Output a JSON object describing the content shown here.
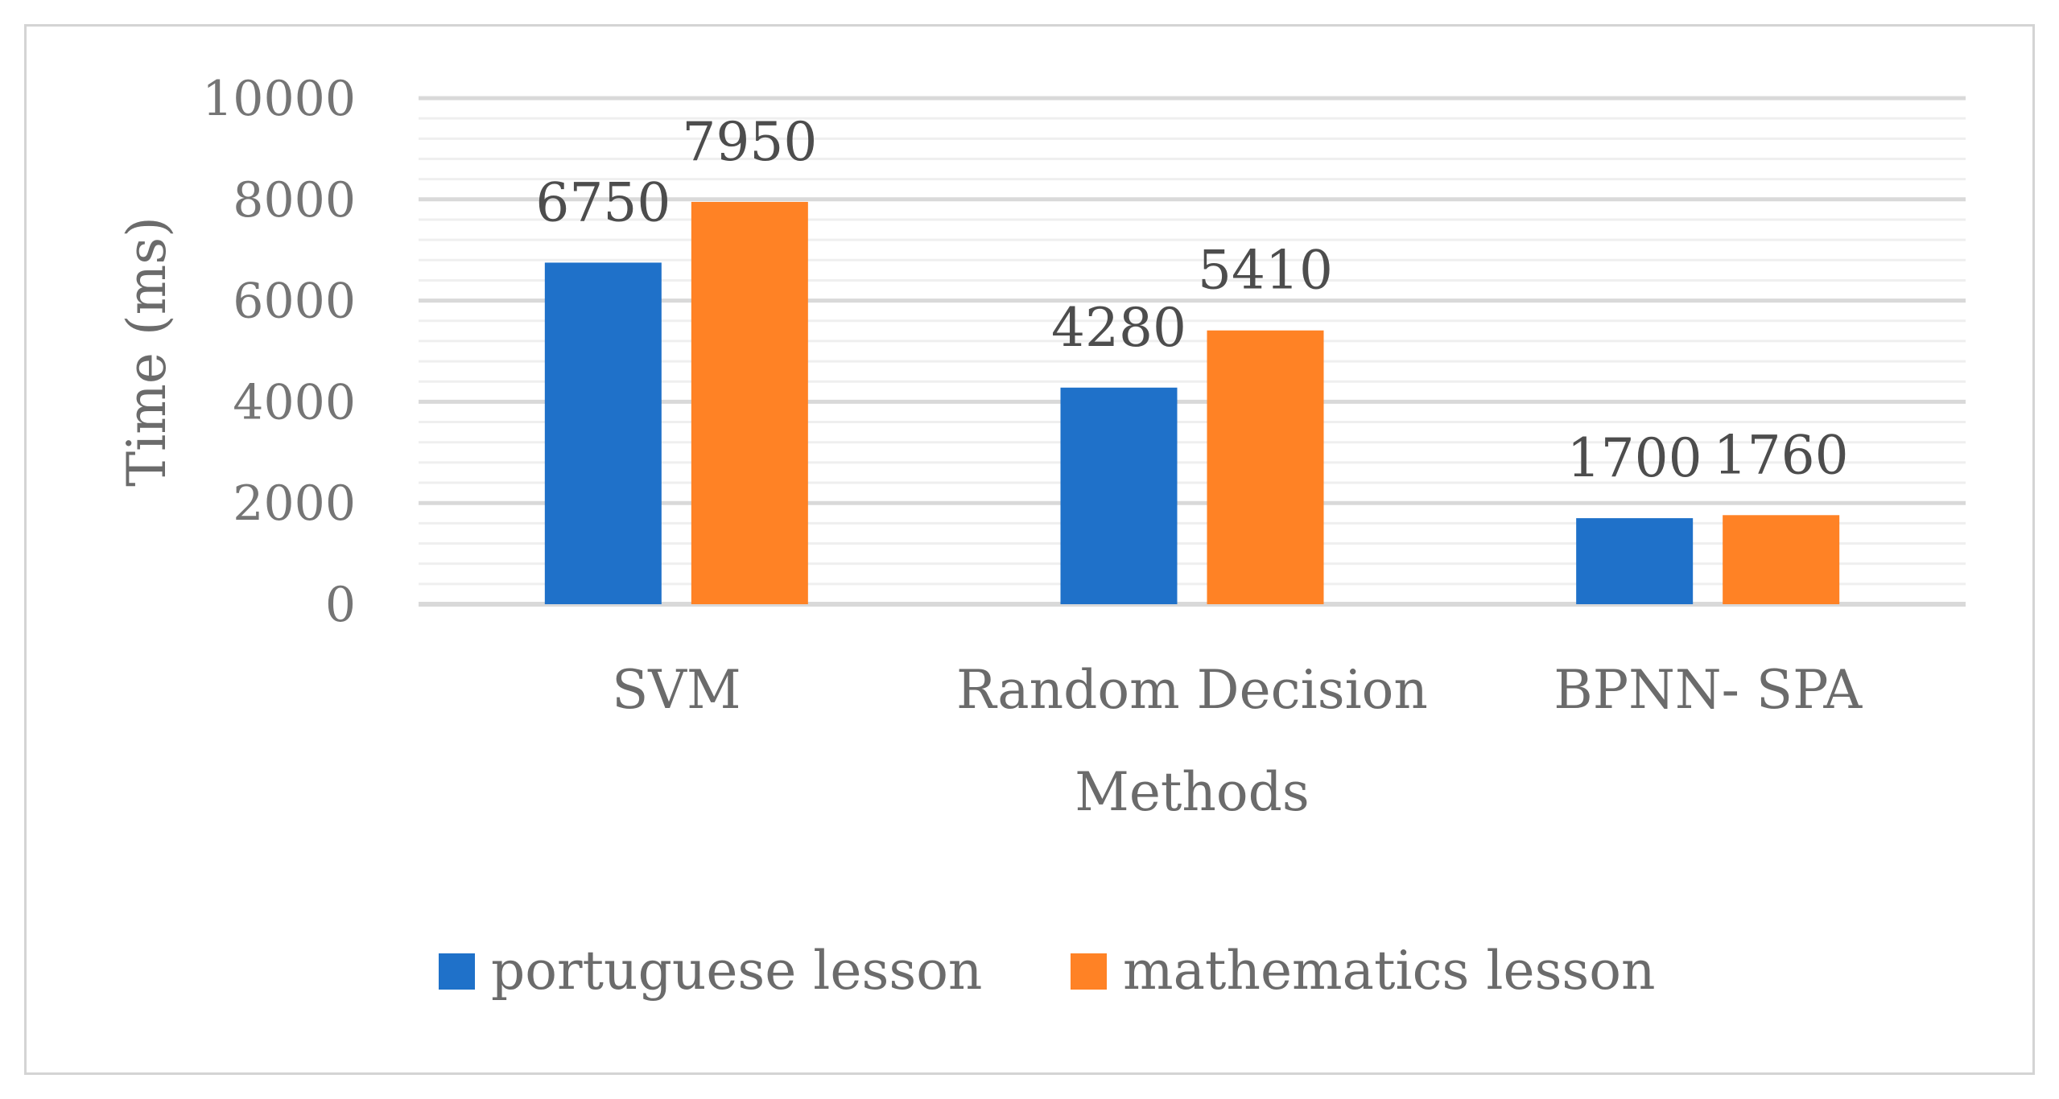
{
  "chart_data": {
    "type": "bar",
    "categories": [
      "SVM",
      "Random Decision",
      "BPNN- SPA"
    ],
    "series": [
      {
        "name": "portuguese lesson",
        "values": [
          6750,
          4280,
          1700
        ],
        "color": "#1f71c9"
      },
      {
        "name": "mathematics lesson",
        "values": [
          7950,
          5410,
          1760
        ],
        "color": "#ff8225"
      }
    ],
    "xlabel": "Methods",
    "ylabel": "Time (ms)",
    "ylim": [
      0,
      10000
    ],
    "yticks": [
      0,
      2000,
      4000,
      6000,
      8000,
      10000
    ],
    "grid": true,
    "legend_position": "bottom"
  }
}
